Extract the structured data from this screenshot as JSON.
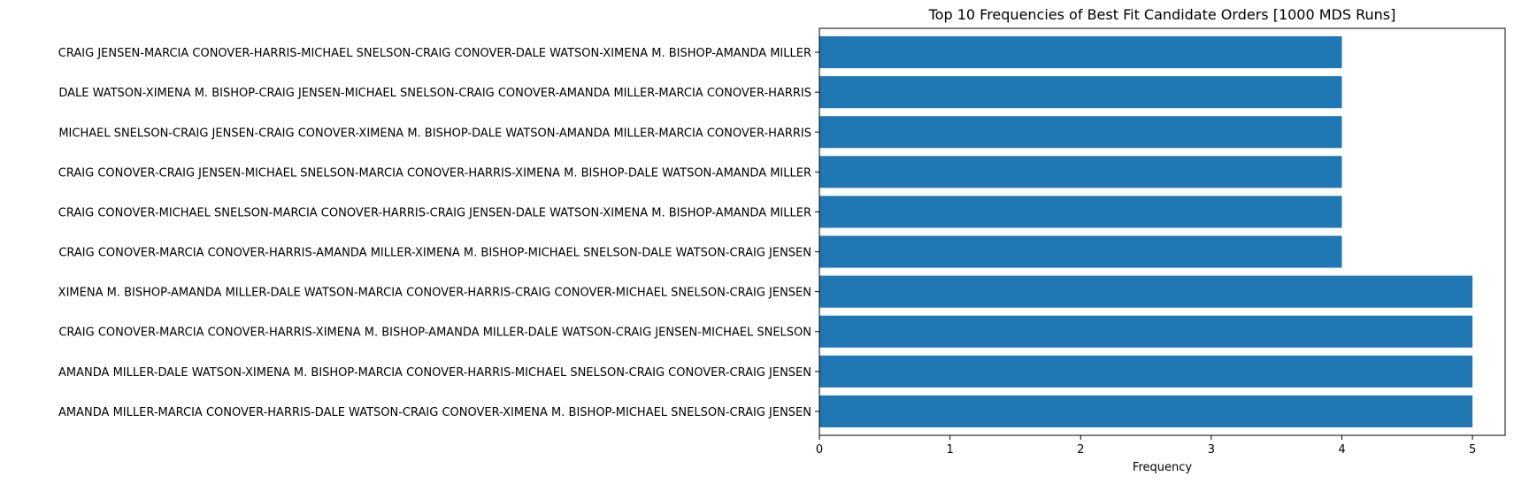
{
  "chart_data": {
    "type": "bar",
    "orientation": "horizontal",
    "title": "Top 10 Frequencies of Best Fit Candidate Orders [1000 MDS Runs]",
    "xlabel": "Frequency",
    "ylabel": "",
    "xlim": [
      0,
      5.25
    ],
    "xticks": [
      0,
      1,
      2,
      3,
      4,
      5
    ],
    "grid": false,
    "bar_color": "#1f77b4",
    "categories": [
      "AMANDA MILLER-MARCIA CONOVER-HARRIS-DALE WATSON-CRAIG CONOVER-XIMENA M. BISHOP-MICHAEL SNELSON-CRAIG JENSEN",
      "AMANDA MILLER-DALE WATSON-XIMENA M. BISHOP-MARCIA CONOVER-HARRIS-MICHAEL SNELSON-CRAIG CONOVER-CRAIG JENSEN",
      "CRAIG CONOVER-MARCIA CONOVER-HARRIS-XIMENA M. BISHOP-AMANDA MILLER-DALE WATSON-CRAIG JENSEN-MICHAEL SNELSON",
      "XIMENA M. BISHOP-AMANDA MILLER-DALE WATSON-MARCIA CONOVER-HARRIS-CRAIG CONOVER-MICHAEL SNELSON-CRAIG JENSEN",
      "CRAIG CONOVER-MARCIA CONOVER-HARRIS-AMANDA MILLER-XIMENA M. BISHOP-MICHAEL SNELSON-DALE WATSON-CRAIG JENSEN",
      "CRAIG CONOVER-MICHAEL SNELSON-MARCIA CONOVER-HARRIS-CRAIG JENSEN-DALE WATSON-XIMENA M. BISHOP-AMANDA MILLER",
      "CRAIG CONOVER-CRAIG JENSEN-MICHAEL SNELSON-MARCIA CONOVER-HARRIS-XIMENA M. BISHOP-DALE WATSON-AMANDA MILLER",
      "MICHAEL SNELSON-CRAIG JENSEN-CRAIG CONOVER-XIMENA M. BISHOP-DALE WATSON-AMANDA MILLER-MARCIA CONOVER-HARRIS",
      "DALE WATSON-XIMENA M. BISHOP-CRAIG JENSEN-MICHAEL SNELSON-CRAIG CONOVER-AMANDA MILLER-MARCIA CONOVER-HARRIS",
      "CRAIG JENSEN-MARCIA CONOVER-HARRIS-MICHAEL SNELSON-CRAIG CONOVER-DALE WATSON-XIMENA M. BISHOP-AMANDA MILLER"
    ],
    "values": [
      5,
      5,
      5,
      5,
      4,
      4,
      4,
      4,
      4,
      4
    ]
  }
}
